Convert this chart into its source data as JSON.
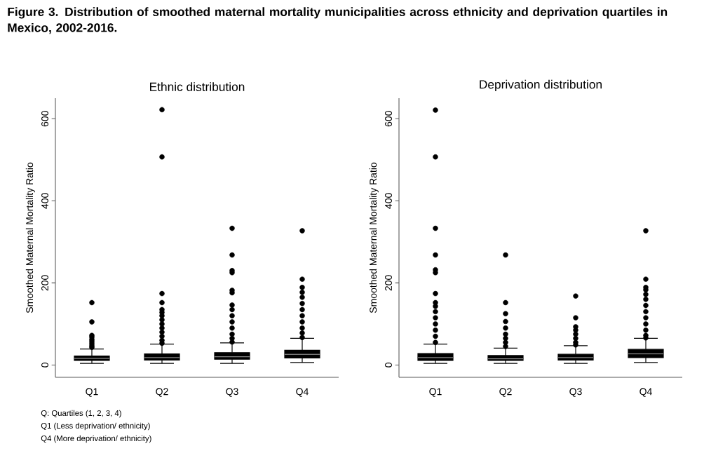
{
  "chart_data": [
    {
      "type": "other",
      "title": "**Figure 3. Distribution of smoothed maternal mortality municipalities across ethnicity and deprivation quartiles in Mexico, 2002-2016.**",
      "annotations": [
        "Q: Quartiles (1, 2, 3, 4)",
        "Q1 (Less deprivation/ ethnicity)",
        "Q4 (More deprivation/ ethnicity)"
      ]
    },
    {
      "type": "box",
      "title": "Ethnic distribution",
      "ylabel": "Smoothed Maternal Mortality Ratio",
      "color": "#000000",
      "categories": [
        "Q1",
        "Q2",
        "Q3",
        "Q4"
      ],
      "ylim": [
        -30,
        650
      ],
      "yticks": [
        0,
        200,
        400,
        600
      ],
      "boxes": [
        {
          "low": 4,
          "q1": 11,
          "median": 16,
          "q3": 22,
          "high": 39,
          "outliers": [
            152,
            105,
            72,
            68,
            62,
            57,
            52,
            47,
            43
          ]
        },
        {
          "low": 4,
          "q1": 12,
          "median": 18,
          "q3": 27,
          "high": 51,
          "outliers": [
            622,
            507,
            174,
            152,
            135,
            128,
            120,
            110,
            100,
            90,
            80,
            70,
            60,
            53
          ]
        },
        {
          "low": 4,
          "q1": 14,
          "median": 20,
          "q3": 30,
          "high": 54,
          "outliers": [
            333,
            268,
            230,
            225,
            182,
            176,
            146,
            135,
            120,
            105,
            90,
            75,
            65,
            56
          ]
        },
        {
          "low": 6,
          "q1": 17,
          "median": 26,
          "q3": 36,
          "high": 65,
          "outliers": [
            327,
            209,
            189,
            177,
            165,
            150,
            135,
            120,
            105,
            90,
            78,
            67
          ]
        }
      ]
    },
    {
      "type": "box",
      "title": "Deprivation distribution",
      "ylabel": "Smoothed Maternal Mortality Ratio",
      "color": "#000000",
      "categories": [
        "Q1",
        "Q2",
        "Q3",
        "Q4"
      ],
      "ylim": [
        -30,
        650
      ],
      "yticks": [
        0,
        200,
        400,
        600
      ],
      "boxes": [
        {
          "low": 4,
          "q1": 11,
          "median": 18,
          "q3": 28,
          "high": 51,
          "outliers": [
            621,
            507,
            333,
            268,
            232,
            225,
            174,
            152,
            143,
            130,
            115,
            100,
            85,
            70,
            55
          ]
        },
        {
          "low": 4,
          "q1": 11,
          "median": 15,
          "q3": 23,
          "high": 41,
          "outliers": [
            268,
            152,
            125,
            106,
            90,
            75,
            65,
            55,
            45
          ]
        },
        {
          "low": 4,
          "q1": 12,
          "median": 18,
          "q3": 26,
          "high": 47,
          "outliers": [
            168,
            115,
            93,
            85,
            75,
            65,
            55,
            49
          ]
        },
        {
          "low": 6,
          "q1": 18,
          "median": 27,
          "q3": 38,
          "high": 65,
          "outliers": [
            327,
            209,
            189,
            183,
            172,
            160,
            145,
            130,
            115,
            100,
            85,
            72,
            66
          ]
        }
      ]
    }
  ]
}
